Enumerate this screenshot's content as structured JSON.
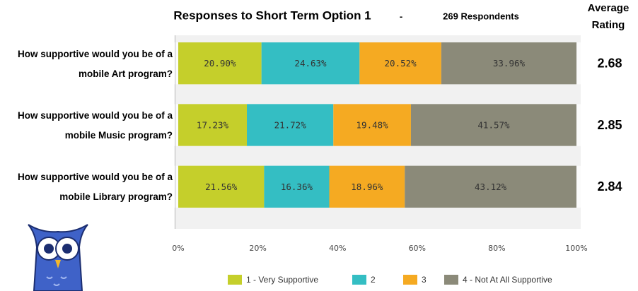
{
  "chart_data": {
    "type": "stacked-bar-horizontal",
    "title": "Responses to Short Term Option 1",
    "separator": "-",
    "subtitle": "269 Respondents",
    "categories": [
      "How supportive would you be of a mobile Art program?",
      "How supportive would you be of a mobile Music program?",
      "How supportive would you be of a mobile Library program?"
    ],
    "series": [
      {
        "name": "1 - Very Supportive",
        "color": "#c5cf2b",
        "values": [
          20.9,
          17.23,
          21.56
        ],
        "value_labels": [
          "20.90%",
          "17.23%",
          "21.56%"
        ]
      },
      {
        "name": "2",
        "color": "#34bec3",
        "values": [
          24.63,
          21.72,
          16.36
        ],
        "value_labels": [
          "24.63%",
          "21.72%",
          "16.36%"
        ]
      },
      {
        "name": "3",
        "color": "#f5aa22",
        "values": [
          20.52,
          19.48,
          18.96
        ],
        "value_labels": [
          "20.52%",
          "19.48%",
          "18.96%"
        ]
      },
      {
        "name": "4 - Not At All Supportive",
        "color": "#8b8a79",
        "values": [
          33.96,
          41.57,
          43.12
        ],
        "value_labels": [
          "33.96%",
          "41.57%",
          "43.12%"
        ]
      }
    ],
    "xlim": [
      0,
      100
    ],
    "xticks": [
      {
        "value": 0,
        "label": "0%"
      },
      {
        "value": 20,
        "label": "20%"
      },
      {
        "value": 40,
        "label": "40%"
      },
      {
        "value": 60,
        "label": "60%"
      },
      {
        "value": 80,
        "label": "80%"
      },
      {
        "value": 100,
        "label": "100%"
      }
    ],
    "grid": false,
    "average_rating": {
      "title": "Average Rating",
      "values": [
        2.68,
        2.85,
        2.84
      ]
    }
  }
}
